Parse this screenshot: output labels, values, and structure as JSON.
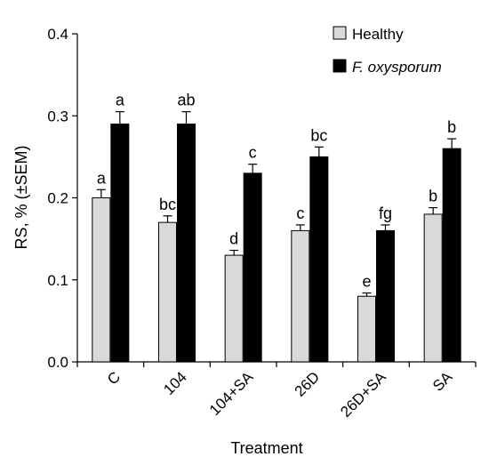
{
  "chart_data": {
    "type": "bar",
    "title": "",
    "xlabel": "Treatment",
    "ylabel": "RS, % (±SEM)",
    "ylim": [
      0,
      0.4
    ],
    "yticks": [
      "0.0",
      "0.1",
      "0.2",
      "0.3",
      "0.4"
    ],
    "categories": [
      "C",
      "104",
      "104+SA",
      "26D",
      "26D+SA",
      "SA"
    ],
    "legend_position": "top-right",
    "series": [
      {
        "name": "Healthy",
        "color": "#d9d9d9",
        "values": [
          0.2,
          0.17,
          0.13,
          0.16,
          0.08,
          0.18
        ],
        "errors": [
          0.01,
          0.008,
          0.006,
          0.007,
          0.004,
          0.008
        ],
        "labels": [
          "a",
          "bc",
          "d",
          "c",
          "e",
          "b"
        ]
      },
      {
        "name": "F. oxysporum",
        "color": "#000000",
        "values": [
          0.29,
          0.29,
          0.23,
          0.25,
          0.16,
          0.26
        ],
        "errors": [
          0.015,
          0.015,
          0.011,
          0.012,
          0.007,
          0.012
        ],
        "labels": [
          "a",
          "ab",
          "c",
          "bc",
          "fg",
          "b"
        ]
      }
    ]
  }
}
